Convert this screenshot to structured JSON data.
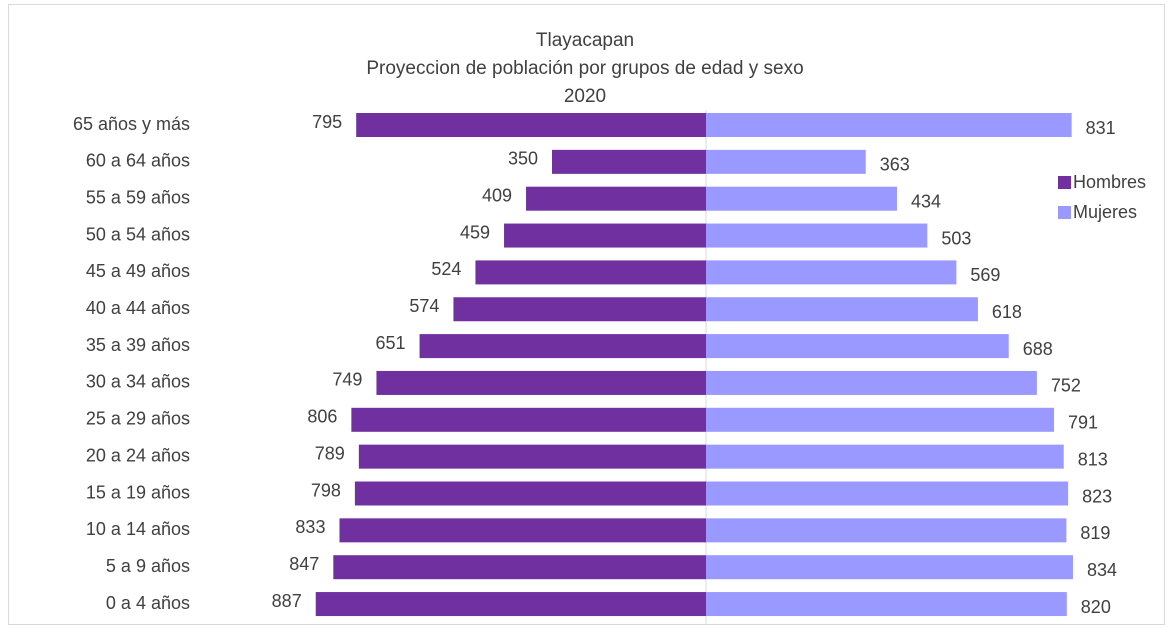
{
  "chart_data": {
    "type": "pyramid",
    "title": [
      "Tlayacapan",
      "Proyeccion de población por grupos de edad y sexo",
      "2020"
    ],
    "categories": [
      "65 años y más",
      "60 a 64 años",
      "55 a 59 años",
      "50 a 54 años",
      "45 a 49 años",
      "40 a 44 años",
      "35 a 39 años",
      "30 a 34 años",
      "25 a 29 años",
      "20 a 24 años",
      "15 a 19 años",
      "10 a 14 años",
      "5 a 9 años",
      "0 a 4 años"
    ],
    "series": [
      {
        "name": "Hombres",
        "color": "#7030a0",
        "values": [
          795,
          350,
          409,
          459,
          524,
          574,
          651,
          749,
          806,
          789,
          798,
          833,
          847,
          887
        ]
      },
      {
        "name": "Mujeres",
        "color": "#9999ff",
        "values": [
          831,
          363,
          434,
          503,
          569,
          618,
          688,
          752,
          791,
          813,
          823,
          819,
          834,
          820
        ]
      }
    ],
    "legend": "right"
  }
}
